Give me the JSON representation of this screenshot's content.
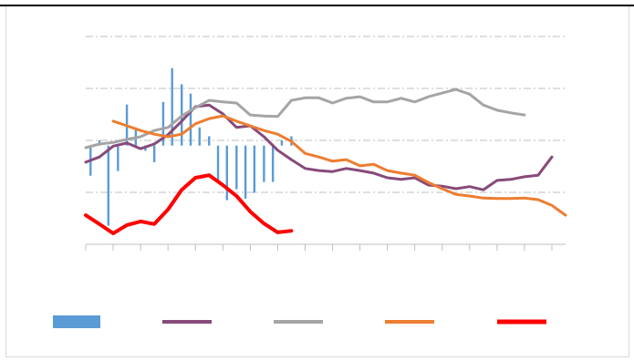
{
  "chart_data": {
    "type": "line",
    "xlim": [
      0,
      70
    ],
    "xticks": [
      0,
      4,
      8,
      12,
      16,
      20,
      24,
      28,
      32,
      36,
      40,
      44,
      48,
      52,
      56,
      60,
      64,
      68
    ],
    "ylim": [
      0,
      4
    ],
    "yticks": [
      0,
      1,
      2,
      3,
      4
    ],
    "y2lim": [
      -1.9,
      2.1
    ],
    "grid": true,
    "series": [
      {
        "type": "bar",
        "axis": "y2",
        "color": "#5b9bd5",
        "x": [
          0.7,
          2,
          3.3,
          4.7,
          6,
          7.3,
          8.7,
          10,
          11.3,
          12.6,
          14,
          15.3,
          16.6,
          18,
          19.3,
          20.6,
          22,
          23.3,
          24.6,
          26,
          27.3,
          28.6,
          30
        ],
        "values": [
          -0.58,
          0.1,
          -1.54,
          -0.49,
          0.79,
          0.35,
          -0.1,
          -0.32,
          0.84,
          1.49,
          1.18,
          1.0,
          0.35,
          0.18,
          -0.7,
          -1.05,
          -0.84,
          -1.02,
          -0.91,
          -0.7,
          -0.7,
          0.1,
          0.18
        ]
      },
      {
        "type": "line",
        "color": "#874a7a",
        "x": [
          0,
          2,
          4,
          6,
          8,
          10,
          12,
          14,
          16,
          18,
          20,
          22,
          24,
          26,
          28,
          30,
          32,
          34,
          36,
          38,
          40,
          42,
          44,
          46,
          48,
          50,
          52,
          54,
          56,
          58,
          60,
          62,
          64,
          66,
          68
        ],
        "values": [
          1.58,
          1.68,
          1.89,
          1.95,
          1.84,
          1.93,
          2.11,
          2.37,
          2.65,
          2.68,
          2.51,
          2.25,
          2.28,
          2.07,
          1.81,
          1.63,
          1.46,
          1.42,
          1.4,
          1.46,
          1.42,
          1.37,
          1.28,
          1.25,
          1.28,
          1.14,
          1.12,
          1.07,
          1.11,
          1.05,
          1.23,
          1.25,
          1.3,
          1.33,
          1.68
        ]
      },
      {
        "type": "line",
        "color": "#a5a5a5",
        "x": [
          0,
          2,
          4,
          6,
          8,
          10,
          12,
          14,
          16,
          18,
          20,
          22,
          24,
          26,
          28,
          30,
          32,
          34,
          36,
          38,
          40,
          42,
          44,
          46,
          48,
          50,
          52,
          54,
          56,
          58,
          60,
          62,
          64
        ],
        "values": [
          1.86,
          1.93,
          1.96,
          2.02,
          2.07,
          2.19,
          2.25,
          2.47,
          2.63,
          2.77,
          2.74,
          2.72,
          2.49,
          2.47,
          2.46,
          2.77,
          2.82,
          2.82,
          2.72,
          2.81,
          2.84,
          2.74,
          2.74,
          2.81,
          2.74,
          2.84,
          2.91,
          2.98,
          2.89,
          2.68,
          2.58,
          2.53,
          2.49
        ]
      },
      {
        "type": "line",
        "color": "#ed7d31",
        "x": [
          4,
          6,
          8,
          10,
          12,
          14,
          16,
          18,
          20,
          22,
          24,
          26,
          28,
          30,
          32,
          34,
          36,
          38,
          40,
          42,
          44,
          46,
          48,
          50,
          52,
          54,
          56,
          58,
          60,
          62,
          64,
          66,
          68,
          70
        ],
        "values": [
          2.37,
          2.28,
          2.19,
          2.12,
          2.07,
          2.12,
          2.32,
          2.42,
          2.47,
          2.37,
          2.28,
          2.19,
          2.12,
          1.98,
          1.75,
          1.68,
          1.6,
          1.63,
          1.51,
          1.54,
          1.42,
          1.37,
          1.33,
          1.19,
          1.07,
          0.96,
          0.93,
          0.89,
          0.88,
          0.88,
          0.89,
          0.86,
          0.75,
          0.56
        ]
      },
      {
        "type": "line",
        "color": "#ff0000",
        "x": [
          0,
          2,
          4,
          6,
          8,
          10,
          12,
          14,
          16,
          18,
          20,
          22,
          24,
          26,
          28,
          30
        ],
        "values": [
          0.56,
          0.39,
          0.21,
          0.37,
          0.44,
          0.39,
          0.67,
          1.05,
          1.28,
          1.33,
          1.14,
          0.93,
          0.63,
          0.4,
          0.23,
          0.26
        ]
      }
    ]
  }
}
